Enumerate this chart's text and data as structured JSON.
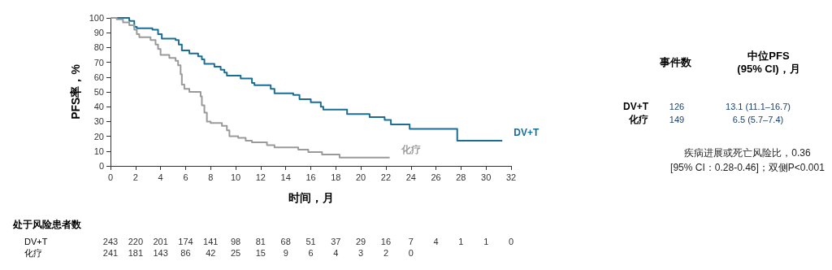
{
  "chart_data": {
    "type": "step",
    "xlabel": "时间，月",
    "ylabel": "PFS率，%",
    "xlim": [
      0,
      32
    ],
    "xticks": [
      0,
      2,
      4,
      6,
      8,
      10,
      12,
      14,
      16,
      18,
      20,
      22,
      24,
      26,
      28,
      30,
      32
    ],
    "ylim": [
      0,
      100
    ],
    "yticks": [
      0,
      10,
      20,
      30,
      40,
      50,
      60,
      70,
      80,
      90,
      100
    ],
    "series": [
      {
        "name": "DV+T",
        "color": "#1a6e96",
        "x": [
          0,
          1.5,
          1.9,
          2.1,
          3.35,
          3.8,
          4.1,
          5.2,
          5.45,
          5.7,
          6.3,
          7.0,
          7.3,
          7.5,
          8.3,
          8.8,
          9.1,
          9.3,
          10.4,
          11.3,
          11.5,
          12.8,
          13.1,
          14.6,
          15.1,
          16.0,
          16.8,
          17.0,
          18.9,
          20.7,
          21.9,
          22.4,
          23.9,
          27.7,
          31.3
        ],
        "values": [
          100,
          98,
          94,
          93,
          92,
          89,
          86,
          85,
          82,
          78,
          76,
          74,
          72,
          69,
          67,
          65,
          63,
          61,
          59,
          56,
          54.5,
          52,
          49,
          48,
          45,
          43,
          40,
          38,
          35,
          33,
          31,
          28,
          25,
          17,
          17
        ]
      },
      {
        "name": "化疗",
        "color": "#9a9a9a",
        "x": [
          0,
          0.5,
          1,
          1.5,
          1.9,
          2.1,
          2.3,
          3.2,
          3.6,
          3.8,
          4.0,
          4.7,
          5.2,
          5.4,
          5.6,
          5.7,
          5.9,
          6.3,
          7.2,
          7.3,
          7.5,
          7.7,
          8.0,
          8.9,
          9.3,
          9.5,
          10.2,
          10.8,
          11.3,
          12.5,
          13.1,
          15.0,
          15.8,
          16.9,
          18.3,
          22.3
        ],
        "values": [
          100,
          99,
          97,
          95,
          92,
          89,
          87,
          85,
          82,
          79,
          75,
          73,
          71,
          68,
          62,
          55,
          52,
          50,
          47,
          41,
          36,
          30,
          29,
          27,
          24,
          20,
          19,
          17,
          16,
          14,
          12.5,
          11,
          9.4,
          7.7,
          5.6,
          5.6
        ]
      }
    ],
    "annotations": [
      "处于风险患者数",
      "DV+T",
      "243 220 201 174 141 98 81 68 51 37 29 16 7 4 1 1 0",
      "化疗",
      "241 181 143 86 42 25 15 9 6 4 3 2 0",
      "事件数",
      "中位PFS\n(95% CI)，月",
      "DV+T",
      "126",
      "13.1 (11.1–16.7)",
      "化疗",
      "149",
      "6.5 (5.7–7.4)",
      "疾病进展或死亡风险比，0.36\n[95% CI：0.28-0.46]；双侧P<0.001"
    ]
  }
}
